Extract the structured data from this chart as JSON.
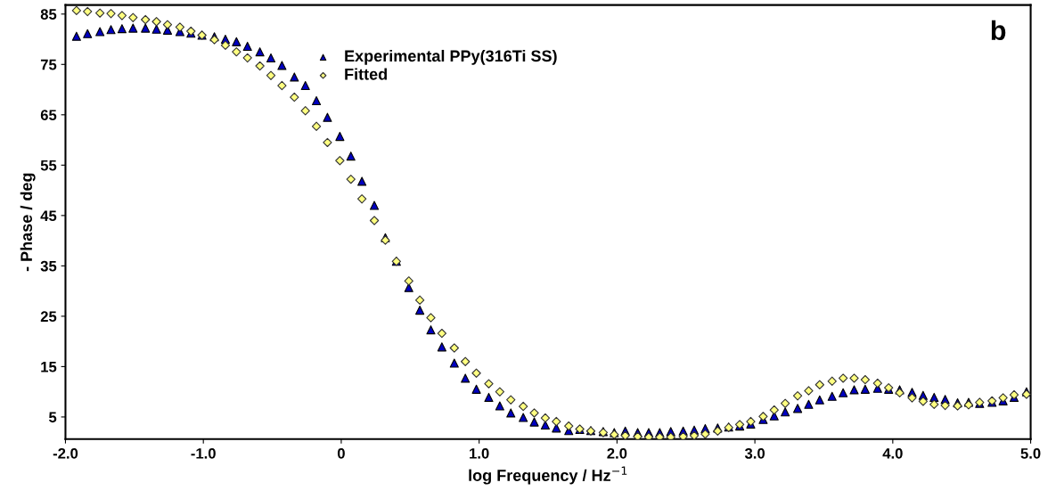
{
  "chart_data": {
    "type": "scatter",
    "xlabel": "log Frequency / Hz$^{−1}$",
    "ylabel": "- Phase / deg",
    "annotations": [
      "b"
    ],
    "x": [
      -1.92,
      -1.84,
      -1.75,
      -1.67,
      -1.59,
      -1.51,
      -1.42,
      -1.34,
      -1.26,
      -1.17,
      -1.09,
      -1.01,
      -0.92,
      -0.84,
      -0.76,
      -0.68,
      -0.59,
      -0.51,
      -0.43,
      -0.34,
      -0.26,
      -0.18,
      -0.1,
      -0.01,
      0.07,
      0.15,
      0.24,
      0.32,
      0.4,
      0.49,
      0.57,
      0.65,
      0.73,
      0.82,
      0.9,
      0.98,
      1.07,
      1.15,
      1.23,
      1.32,
      1.4,
      1.48,
      1.56,
      1.65,
      1.73,
      1.81,
      1.9,
      1.98,
      2.06,
      2.15,
      2.23,
      2.31,
      2.39,
      2.48,
      2.56,
      2.64,
      2.73,
      2.81,
      2.89,
      2.97,
      3.06,
      3.14,
      3.22,
      3.31,
      3.39,
      3.47,
      3.56,
      3.64,
      3.72,
      3.8,
      3.89,
      3.97,
      4.05,
      4.14,
      4.22,
      4.3,
      4.38,
      4.47,
      4.55,
      4.63,
      4.72,
      4.8,
      4.88,
      4.97
    ],
    "series": [
      {
        "name": "Experimental PPy(316Ti SS)",
        "color": "#0000c0",
        "marker": "triangle",
        "values": [
          80.6,
          81.1,
          81.5,
          81.9,
          82.1,
          82.2,
          82.2,
          82.0,
          81.8,
          81.5,
          81.2,
          80.8,
          80.5,
          80.0,
          79.5,
          78.6,
          77.5,
          76.3,
          74.8,
          72.5,
          70.8,
          67.8,
          64.5,
          60.7,
          56.8,
          51.8,
          47.0,
          40.6,
          35.9,
          30.7,
          26.2,
          22.3,
          18.9,
          15.7,
          12.7,
          10.5,
          8.9,
          7.2,
          5.8,
          4.9,
          4.0,
          3.4,
          2.8,
          2.3,
          2.5,
          2.3,
          2.1,
          1.9,
          2.2,
          1.9,
          1.9,
          1.9,
          2.1,
          2.2,
          2.4,
          2.7,
          2.8,
          3.0,
          3.2,
          3.6,
          4.5,
          5.2,
          6.0,
          6.7,
          7.5,
          8.4,
          9.1,
          9.8,
          10.4,
          10.5,
          10.7,
          10.5,
          10.4,
          9.9,
          9.3,
          8.9,
          8.5,
          7.8,
          7.9,
          7.7,
          7.9,
          8.2,
          8.9,
          10.0
        ]
      },
      {
        "name": "Fitted",
        "color": "#ffff80",
        "marker": "diamond",
        "values": [
          85.7,
          85.5,
          85.2,
          85.1,
          84.7,
          84.3,
          83.9,
          83.5,
          82.9,
          82.4,
          81.6,
          80.8,
          79.9,
          78.8,
          77.5,
          76.3,
          74.7,
          72.8,
          70.8,
          68.5,
          65.8,
          62.7,
          59.5,
          55.9,
          52.2,
          48.3,
          44.0,
          40.1,
          35.9,
          32.0,
          28.2,
          24.7,
          21.6,
          18.7,
          16.0,
          13.7,
          11.6,
          10.0,
          8.4,
          7.1,
          5.8,
          4.8,
          4.1,
          3.2,
          2.6,
          2.2,
          1.9,
          1.5,
          1.3,
          1.1,
          1.0,
          1.0,
          1.0,
          1.1,
          1.3,
          1.6,
          2.2,
          2.9,
          3.5,
          4.1,
          5.1,
          6.4,
          7.7,
          9.2,
          10.2,
          11.4,
          12.1,
          12.7,
          12.7,
          12.4,
          11.7,
          10.8,
          9.8,
          8.8,
          8.1,
          7.5,
          7.3,
          7.2,
          7.4,
          7.9,
          8.2,
          8.8,
          9.4,
          9.5
        ]
      }
    ],
    "xlim": [
      -2.0,
      5.0
    ],
    "xticks": [
      {
        "value": -2,
        "label": "-2.0"
      },
      {
        "value": -1,
        "label": "-1.0"
      },
      {
        "value": 0,
        "label": "0"
      },
      {
        "value": 1,
        "label": "1.0"
      },
      {
        "value": 2,
        "label": "2.0"
      },
      {
        "value": 3,
        "label": "3.0"
      },
      {
        "value": 4,
        "label": "4.0"
      },
      {
        "value": 5,
        "label": "5.0"
      }
    ],
    "ylim": [
      0.6,
      86.8
    ],
    "yticks": [
      5,
      15,
      25,
      35,
      45,
      55,
      65,
      75,
      85
    ],
    "legend": "top",
    "grid": false
  }
}
